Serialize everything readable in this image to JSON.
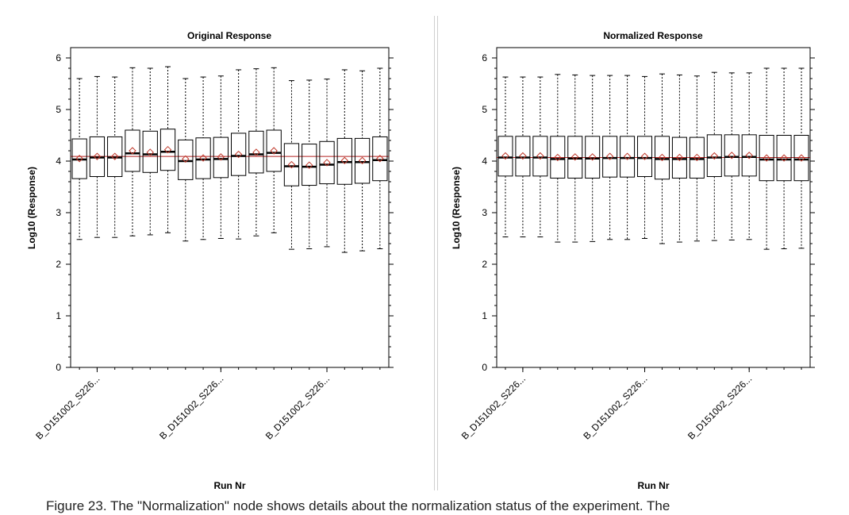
{
  "chart_data": [
    {
      "type": "boxplot",
      "title": "Original Response",
      "xlabel": "Run Nr",
      "ylabel": "Log10 (Response)",
      "ylim": [
        0,
        6.2
      ],
      "yticks": [
        0,
        1,
        2,
        3,
        4,
        5,
        6
      ],
      "reference_line": 4.09,
      "xtick_labels": [
        "B_D151002_S226...",
        "B_D151002_S226...",
        "B_D151002_S226..."
      ],
      "boxes": [
        {
          "min": 2.48,
          "q1": 3.66,
          "median": 4.03,
          "mean": 4.05,
          "q3": 4.43,
          "max": 5.6
        },
        {
          "min": 2.52,
          "q1": 3.7,
          "median": 4.07,
          "mean": 4.09,
          "q3": 4.47,
          "max": 5.64
        },
        {
          "min": 2.52,
          "q1": 3.7,
          "median": 4.07,
          "mean": 4.09,
          "q3": 4.47,
          "max": 5.63
        },
        {
          "min": 2.55,
          "q1": 3.8,
          "median": 4.15,
          "mean": 4.2,
          "q3": 4.6,
          "max": 5.81
        },
        {
          "min": 2.57,
          "q1": 3.78,
          "median": 4.13,
          "mean": 4.17,
          "q3": 4.58,
          "max": 5.8
        },
        {
          "min": 2.61,
          "q1": 3.82,
          "median": 4.18,
          "mean": 4.22,
          "q3": 4.62,
          "max": 5.83
        },
        {
          "min": 2.45,
          "q1": 3.64,
          "median": 4.0,
          "mean": 4.04,
          "q3": 4.41,
          "max": 5.6
        },
        {
          "min": 2.48,
          "q1": 3.66,
          "median": 4.03,
          "mean": 4.06,
          "q3": 4.45,
          "max": 5.63
        },
        {
          "min": 2.5,
          "q1": 3.68,
          "median": 4.04,
          "mean": 4.08,
          "q3": 4.46,
          "max": 5.65
        },
        {
          "min": 2.49,
          "q1": 3.72,
          "median": 4.1,
          "mean": 4.13,
          "q3": 4.54,
          "max": 5.77
        },
        {
          "min": 2.55,
          "q1": 3.77,
          "median": 4.13,
          "mean": 4.17,
          "q3": 4.58,
          "max": 5.79
        },
        {
          "min": 2.61,
          "q1": 3.8,
          "median": 4.16,
          "mean": 4.2,
          "q3": 4.6,
          "max": 5.81
        },
        {
          "min": 2.29,
          "q1": 3.52,
          "median": 3.9,
          "mean": 3.93,
          "q3": 4.34,
          "max": 5.56
        },
        {
          "min": 2.3,
          "q1": 3.53,
          "median": 3.89,
          "mean": 3.92,
          "q3": 4.33,
          "max": 5.57
        },
        {
          "min": 2.34,
          "q1": 3.56,
          "median": 3.93,
          "mean": 3.97,
          "q3": 4.38,
          "max": 5.59
        },
        {
          "min": 2.23,
          "q1": 3.55,
          "median": 3.98,
          "mean": 4.01,
          "q3": 4.44,
          "max": 5.77
        },
        {
          "min": 2.26,
          "q1": 3.57,
          "median": 3.98,
          "mean": 4.01,
          "q3": 4.44,
          "max": 5.75
        },
        {
          "min": 2.3,
          "q1": 3.62,
          "median": 4.02,
          "mean": 4.05,
          "q3": 4.47,
          "max": 5.8
        }
      ]
    },
    {
      "type": "boxplot",
      "title": "Normalized Response",
      "xlabel": "Run Nr",
      "ylabel": "Log10 (Response)",
      "ylim": [
        0,
        6.2
      ],
      "yticks": [
        0,
        1,
        2,
        3,
        4,
        5,
        6
      ],
      "reference_line": 4.07,
      "xtick_labels": [
        "B_D151002_S226...",
        "B_D151002_S226...",
        "B_D151002_S226..."
      ],
      "boxes": [
        {
          "min": 2.53,
          "q1": 3.71,
          "median": 4.07,
          "mean": 4.1,
          "q3": 4.48,
          "max": 5.63
        },
        {
          "min": 2.53,
          "q1": 3.71,
          "median": 4.07,
          "mean": 4.1,
          "q3": 4.48,
          "max": 5.63
        },
        {
          "min": 2.53,
          "q1": 3.71,
          "median": 4.07,
          "mean": 4.1,
          "q3": 4.48,
          "max": 5.63
        },
        {
          "min": 2.43,
          "q1": 3.67,
          "median": 4.04,
          "mean": 4.07,
          "q3": 4.48,
          "max": 5.68
        },
        {
          "min": 2.43,
          "q1": 3.67,
          "median": 4.05,
          "mean": 4.08,
          "q3": 4.48,
          "max": 5.67
        },
        {
          "min": 2.44,
          "q1": 3.67,
          "median": 4.05,
          "mean": 4.08,
          "q3": 4.48,
          "max": 5.66
        },
        {
          "min": 2.48,
          "q1": 3.69,
          "median": 4.06,
          "mean": 4.09,
          "q3": 4.48,
          "max": 5.66
        },
        {
          "min": 2.48,
          "q1": 3.69,
          "median": 4.06,
          "mean": 4.09,
          "q3": 4.48,
          "max": 5.66
        },
        {
          "min": 2.5,
          "q1": 3.7,
          "median": 4.06,
          "mean": 4.09,
          "q3": 4.48,
          "max": 5.64
        },
        {
          "min": 2.4,
          "q1": 3.65,
          "median": 4.04,
          "mean": 4.07,
          "q3": 4.48,
          "max": 5.69
        },
        {
          "min": 2.43,
          "q1": 3.67,
          "median": 4.04,
          "mean": 4.07,
          "q3": 4.46,
          "max": 5.67
        },
        {
          "min": 2.45,
          "q1": 3.67,
          "median": 4.04,
          "mean": 4.07,
          "q3": 4.46,
          "max": 5.65
        },
        {
          "min": 2.46,
          "q1": 3.7,
          "median": 4.07,
          "mean": 4.1,
          "q3": 4.51,
          "max": 5.72
        },
        {
          "min": 2.47,
          "q1": 3.71,
          "median": 4.08,
          "mean": 4.11,
          "q3": 4.51,
          "max": 5.71
        },
        {
          "min": 2.48,
          "q1": 3.71,
          "median": 4.08,
          "mean": 4.11,
          "q3": 4.51,
          "max": 5.71
        },
        {
          "min": 2.29,
          "q1": 3.62,
          "median": 4.03,
          "mean": 4.06,
          "q3": 4.5,
          "max": 5.8
        },
        {
          "min": 2.3,
          "q1": 3.62,
          "median": 4.03,
          "mean": 4.06,
          "q3": 4.5,
          "max": 5.8
        },
        {
          "min": 2.31,
          "q1": 3.62,
          "median": 4.03,
          "mean": 4.06,
          "q3": 4.5,
          "max": 5.8
        }
      ]
    }
  ],
  "caption": "Figure 23. The \"Normalization\" node shows details about the normalization status of the experiment. The"
}
